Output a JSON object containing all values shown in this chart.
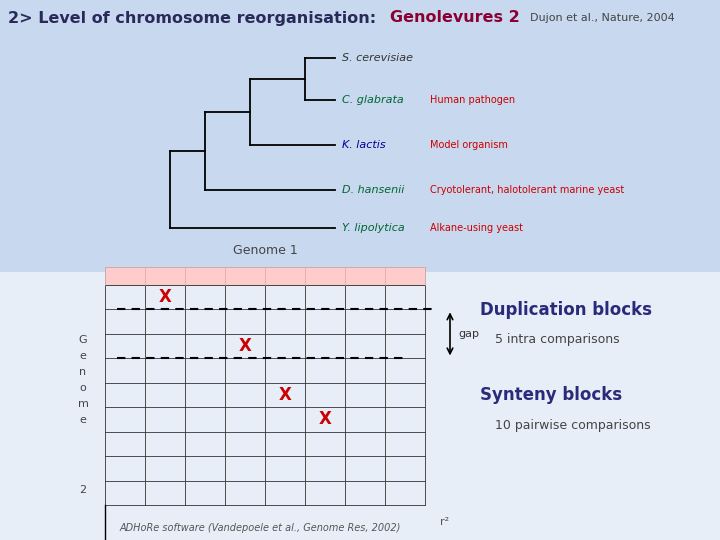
{
  "title_prefix": "2> Level of chromosome reorganisation:",
  "title_genolevures": "Genolevures 2",
  "title_citation": "Dujon et al., Nature, 2004",
  "species": [
    {
      "name": "S. cerevisiae",
      "desc": "",
      "desc_color": "#cc0000",
      "name_color": "#333333"
    },
    {
      "name": "C. glabrata",
      "desc": "Human pathogen",
      "desc_color": "#cc0000",
      "name_color": "#006633"
    },
    {
      "name": "K. lactis",
      "desc": "Model organism",
      "desc_color": "#cc0000",
      "name_color": "#000099"
    },
    {
      "name": "D. hansenii",
      "desc": "Cryotolerant, halotolerant marine yeast",
      "desc_color": "#cc0000",
      "name_color": "#006633"
    },
    {
      "name": "Y. lipolytica",
      "desc": "Alkane-using yeast",
      "desc_color": "#cc0000",
      "name_color": "#006633"
    }
  ],
  "genome1_label": "Genome 1",
  "gap_label": "gap",
  "r2_label": "r²",
  "duplication_title": "Duplication blocks",
  "duplication_sub": "5 intra comparisons",
  "synteny_title": "Synteny blocks",
  "synteny_sub": "10 pairwise comparisons",
  "footer": "ADHoRe software (Vandepoele et al., Genome Res, 2002)",
  "cross_color": "#cc0000",
  "grid_color": "#333333",
  "header_bar_color": "#ffcccc",
  "bg_top": "#c8d8ee",
  "bg_bottom": "#e8eef8",
  "title_color": "#2a2a5a",
  "genolevures_color": "#8b0033",
  "citation_color": "#444444",
  "duplication_color": "#2a2a7a",
  "synteny_color": "#2a2a7a"
}
